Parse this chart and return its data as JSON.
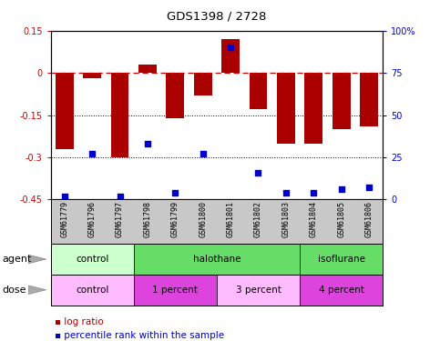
{
  "title": "GDS1398 / 2728",
  "samples": [
    "GSM61779",
    "GSM61796",
    "GSM61797",
    "GSM61798",
    "GSM61799",
    "GSM61800",
    "GSM61801",
    "GSM61802",
    "GSM61803",
    "GSM61804",
    "GSM61805",
    "GSM61806"
  ],
  "log_ratio": [
    -0.27,
    -0.02,
    -0.3,
    0.03,
    -0.16,
    -0.08,
    0.12,
    -0.13,
    -0.25,
    -0.25,
    -0.2,
    -0.19
  ],
  "percentile_rank": [
    2,
    27,
    2,
    33,
    4,
    27,
    90,
    16,
    4,
    4,
    6,
    7
  ],
  "bar_color": "#aa0000",
  "scatter_color": "#0000cc",
  "ylim_left": [
    -0.45,
    0.15
  ],
  "ylim_right": [
    0,
    100
  ],
  "yticks_left": [
    -0.45,
    -0.3,
    -0.15,
    0.0,
    0.15
  ],
  "ytick_labels_left": [
    "-0.45",
    "-0.3",
    "-0.15",
    "0",
    "0.15"
  ],
  "yticks_right": [
    0,
    25,
    50,
    75,
    100
  ],
  "ytick_labels_right": [
    "0",
    "25",
    "50",
    "75",
    "100%"
  ],
  "bar_width": 0.65,
  "background_color": "#ffffff",
  "dashed_line_color": "#cc0000",
  "left_tick_color": "#cc0000",
  "right_tick_color": "#0000cc",
  "agent_groups": [
    {
      "label": "control",
      "start": 0,
      "end": 3,
      "facecolor": "#ccffcc"
    },
    {
      "label": "halothane",
      "start": 3,
      "end": 9,
      "facecolor": "#66dd66"
    },
    {
      "label": "isoflurane",
      "start": 9,
      "end": 12,
      "facecolor": "#66dd66"
    }
  ],
  "dose_groups": [
    {
      "label": "control",
      "start": 0,
      "end": 3,
      "facecolor": "#ffbbff"
    },
    {
      "label": "1 percent",
      "start": 3,
      "end": 6,
      "facecolor": "#dd44dd"
    },
    {
      "label": "3 percent",
      "start": 6,
      "end": 9,
      "facecolor": "#ffbbff"
    },
    {
      "label": "4 percent",
      "start": 9,
      "end": 12,
      "facecolor": "#dd44dd"
    }
  ]
}
